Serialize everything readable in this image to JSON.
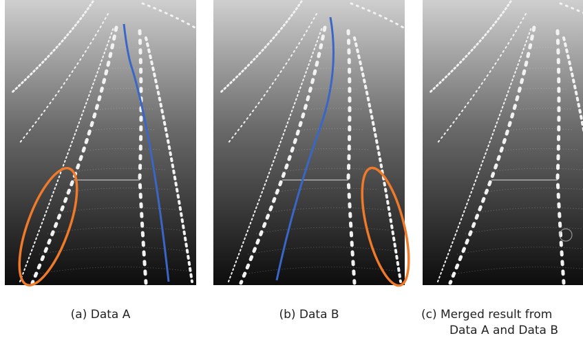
{
  "panels": [
    {
      "caption": [
        "(a) Data A"
      ]
    },
    {
      "caption": [
        "(b) Data B"
      ]
    },
    {
      "caption": [
        "(c) Merged result from",
        "Data A and Data B"
      ]
    }
  ]
}
